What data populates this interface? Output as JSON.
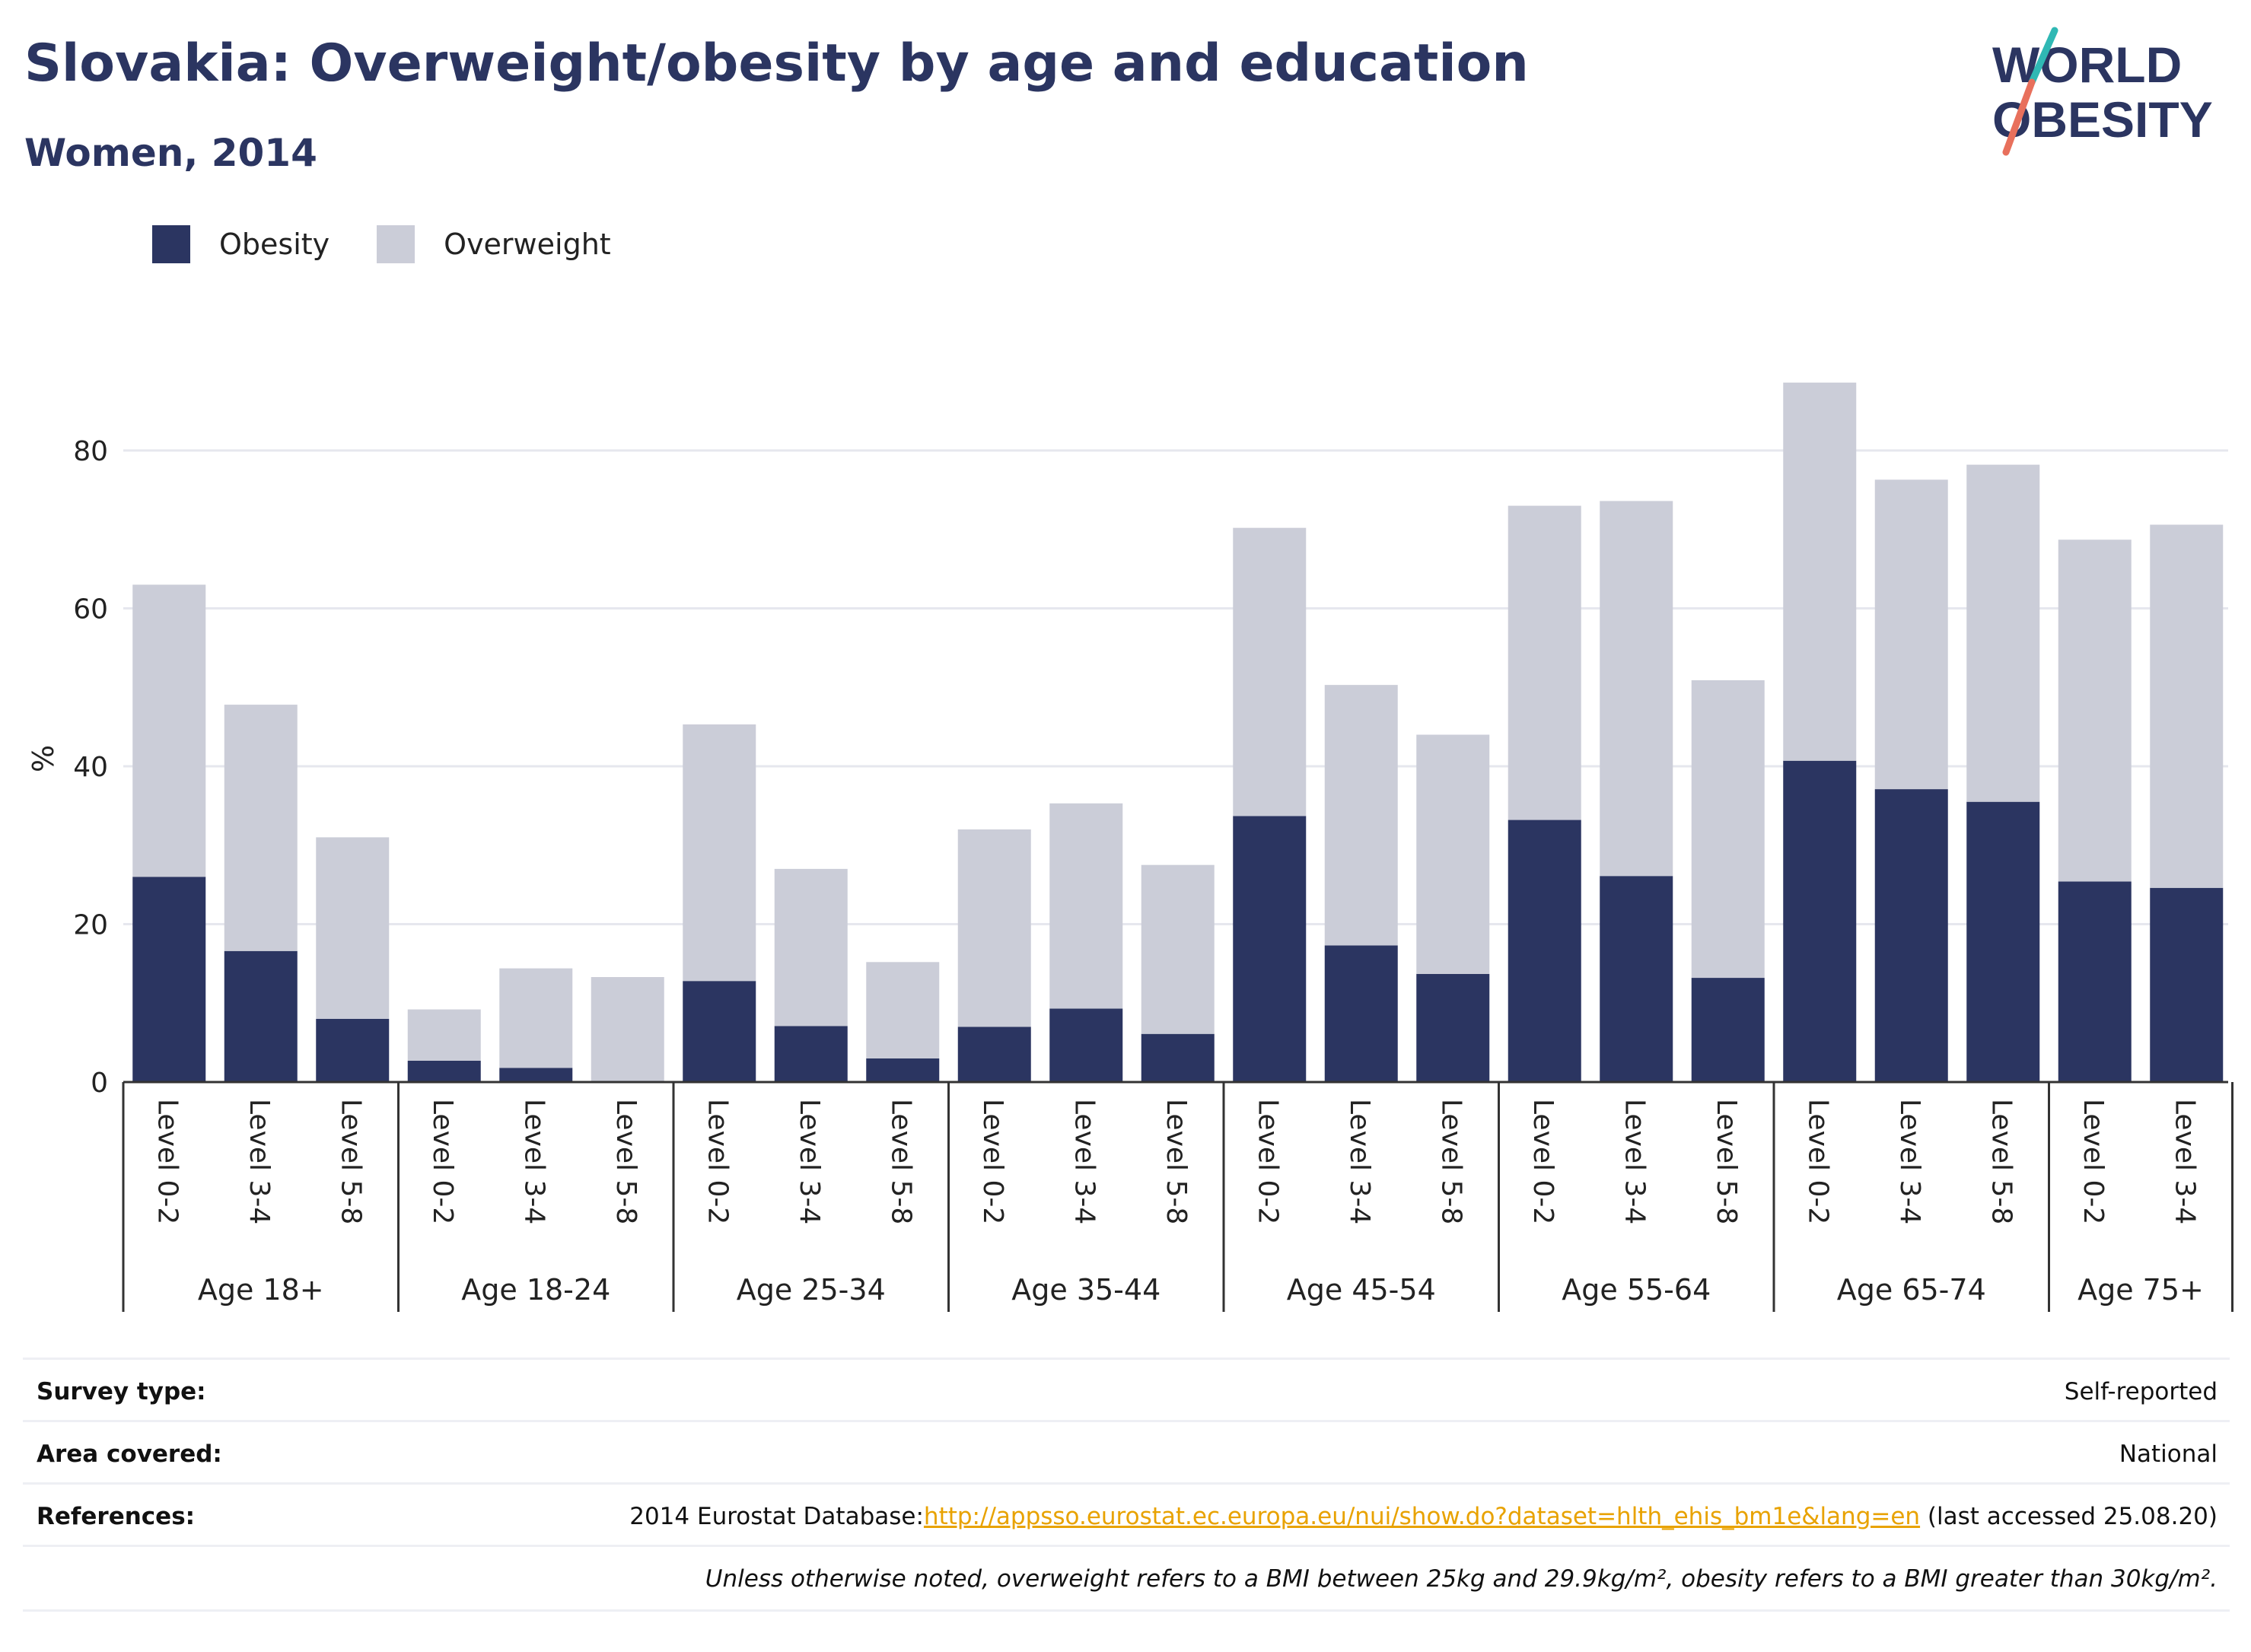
{
  "title": "Slovakia: Overweight/obesity by age and education",
  "subtitle": "Women, 2014",
  "logo": {
    "line1": "WORLD",
    "line2": "OBESITY"
  },
  "colors": {
    "obesity": "#2b3561",
    "overweight": "#cbcdd8",
    "title": "#2b3561",
    "link": "#e8a200"
  },
  "legend": [
    {
      "label": "Obesity",
      "color": "#2b3561"
    },
    {
      "label": "Overweight",
      "color": "#cbcdd8"
    }
  ],
  "chart_data": {
    "type": "bar",
    "stacked": true,
    "ylabel": "%",
    "ylim": [
      0,
      92
    ],
    "yticks": [
      0,
      20,
      40,
      60,
      80
    ],
    "grid": true,
    "legend_position": "top-left",
    "groups": [
      {
        "label": "Age 18+",
        "categories": [
          "Level 0-2",
          "Level 3-4",
          "Level 5-8"
        ]
      },
      {
        "label": "Age 18-24",
        "categories": [
          "Level 0-2",
          "Level 3-4",
          "Level 5-8"
        ]
      },
      {
        "label": "Age 25-34",
        "categories": [
          "Level 0-2",
          "Level 3-4",
          "Level 5-8"
        ]
      },
      {
        "label": "Age 35-44",
        "categories": [
          "Level 0-2",
          "Level 3-4",
          "Level 5-8"
        ]
      },
      {
        "label": "Age 45-54",
        "categories": [
          "Level 0-2",
          "Level 3-4",
          "Level 5-8"
        ]
      },
      {
        "label": "Age 55-64",
        "categories": [
          "Level 0-2",
          "Level 3-4",
          "Level 5-8"
        ]
      },
      {
        "label": "Age 65-74",
        "categories": [
          "Level 0-2",
          "Level 3-4",
          "Level 5-8"
        ]
      },
      {
        "label": "Age 75+",
        "categories": [
          "Level 0-2",
          "Level 3-4"
        ]
      }
    ],
    "series": [
      {
        "name": "Obesity",
        "values": [
          26.0,
          16.6,
          8.0,
          2.7,
          1.8,
          0,
          12.8,
          7.1,
          3.0,
          7.0,
          9.3,
          6.1,
          33.7,
          17.3,
          13.7,
          33.2,
          26.1,
          13.2,
          40.7,
          37.1,
          35.5,
          25.4,
          24.6
        ]
      },
      {
        "name": "Overweight",
        "values": [
          37.0,
          31.2,
          23.0,
          6.5,
          12.6,
          13.3,
          32.5,
          19.9,
          12.2,
          25.0,
          26.0,
          21.4,
          36.5,
          33.0,
          30.3,
          39.8,
          47.5,
          37.7,
          47.9,
          39.2,
          42.7,
          43.3,
          46.0
        ]
      }
    ]
  },
  "footer": {
    "survey_label": "Survey type:",
    "survey_value": "Self-reported",
    "area_label": "Area covered:",
    "area_value": "National",
    "ref_label": "References:",
    "ref_prefix": "2014 Eurostat Database:",
    "ref_link": "http://appsso.eurostat.ec.europa.eu/nui/show.do?dataset=hlth_ehis_bm1e&lang=en",
    "ref_suffix": " (last accessed 25.08.20)",
    "note": "Unless otherwise noted, overweight refers to a BMI between 25kg and 29.9kg/m², obesity refers to a BMI greater than 30kg/m²."
  }
}
